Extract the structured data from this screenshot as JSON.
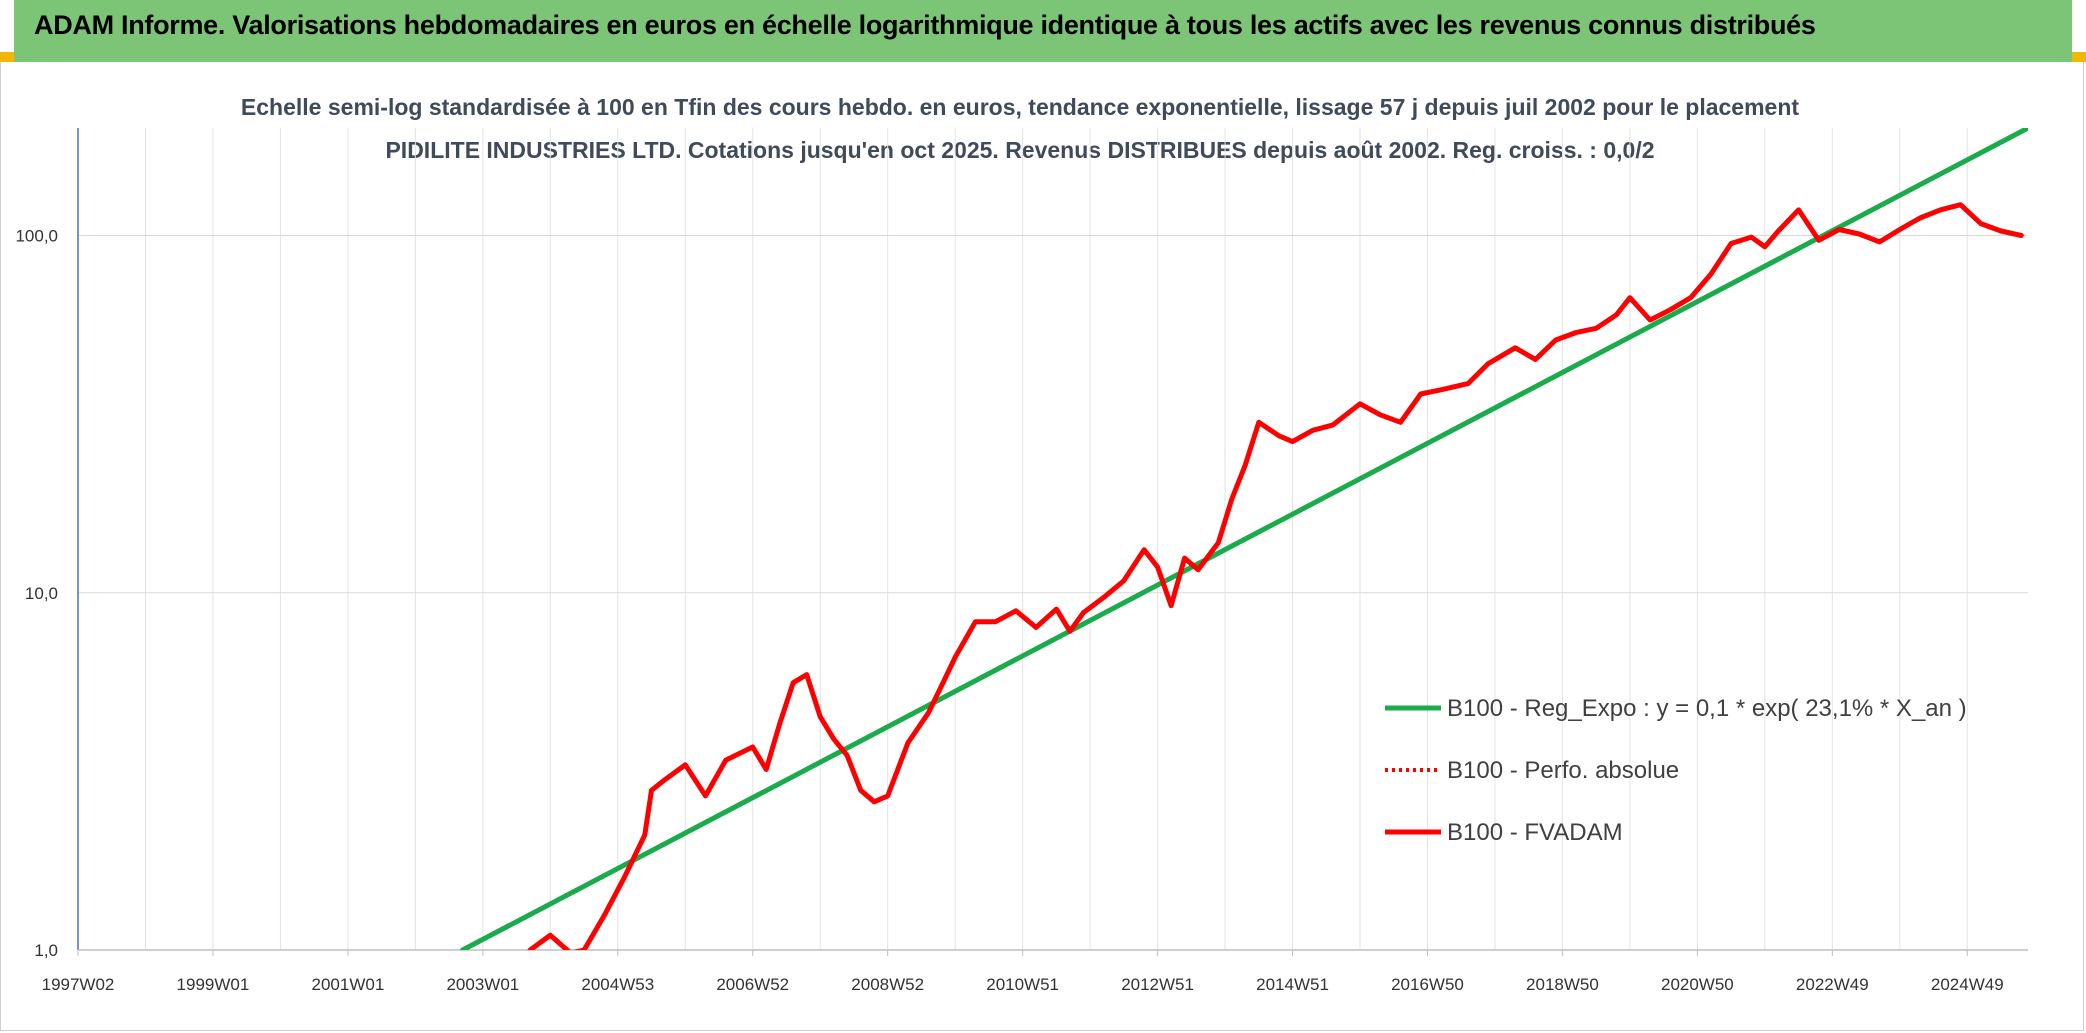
{
  "banner": {
    "title": "ADAM Informe. Valorisations hebdomadaires en euros en échelle logarithmique identique à tous les actifs avec les revenus connus distribués"
  },
  "chart_data": {
    "type": "line",
    "title": "Echelle semi-log standardisée à 100 en Tfin des cours hebdo. en euros, tendance exponentielle, lissage 57 j depuis juil 2002 pour le placement PIDILITE INDUSTRIES LTD. Cotations jusqu'en oct 2025. Revenus DISTRIBUES depuis août 2002. Reg. croiss. : 0,0/2",
    "y_scale": "log",
    "ylim": [
      1,
      200
    ],
    "xlim": [
      1997.0,
      2025.9
    ],
    "grid": true,
    "legend_position": "right",
    "x_tick_labels": [
      "1997W02",
      "1999W01",
      "2001W01",
      "2003W01",
      "2004W53",
      "2006W52",
      "2008W52",
      "2010W51",
      "2012W51",
      "2014W51",
      "2016W50",
      "2018W50",
      "2020W50",
      "2022W49",
      "2024W49"
    ],
    "x_tick_values": [
      1997.0,
      1999.0,
      2001.0,
      2003.0,
      2005.0,
      2007.0,
      2009.0,
      2011.0,
      2013.0,
      2015.0,
      2017.0,
      2019.0,
      2021.0,
      2023.0,
      2025.0
    ],
    "y_tick_labels": [
      "1,0",
      "10,0",
      "100,0"
    ],
    "y_tick_values": [
      1,
      10,
      100
    ],
    "series": [
      {
        "name": "B100 - Reg_Expo : y = 0,1 * exp( 23,1% *  X_an )",
        "color": "#1aab4c",
        "style": "solid",
        "x": [
          2002.7,
          2025.9
        ],
        "y": [
          1.0,
          200.0
        ]
      },
      {
        "name": "B100 - Perfo. absolue",
        "color": "#ff0000",
        "style": "dotted",
        "x": [],
        "y": []
      },
      {
        "name": "B100 - FVADAM",
        "color": "#ff0000",
        "style": "solid",
        "x": [
          2003.7,
          2004.0,
          2004.3,
          2004.5,
          2004.8,
          2005.1,
          2005.4,
          2005.5,
          2005.7,
          2006.0,
          2006.3,
          2006.6,
          2007.0,
          2007.2,
          2007.4,
          2007.6,
          2007.8,
          2008.0,
          2008.2,
          2008.4,
          2008.6,
          2008.8,
          2009.0,
          2009.3,
          2009.6,
          2009.8,
          2010.0,
          2010.3,
          2010.6,
          2010.9,
          2011.2,
          2011.5,
          2011.7,
          2011.9,
          2012.2,
          2012.5,
          2012.8,
          2013.0,
          2013.2,
          2013.4,
          2013.6,
          2013.9,
          2014.1,
          2014.3,
          2014.5,
          2014.8,
          2015.0,
          2015.3,
          2015.6,
          2016.0,
          2016.3,
          2016.6,
          2016.9,
          2017.2,
          2017.6,
          2017.9,
          2018.3,
          2018.6,
          2018.9,
          2019.2,
          2019.5,
          2019.8,
          2020.0,
          2020.3,
          2020.6,
          2020.9,
          2021.2,
          2021.5,
          2021.8,
          2022.0,
          2022.2,
          2022.5,
          2022.8,
          2023.1,
          2023.4,
          2023.7,
          2024.0,
          2024.3,
          2024.6,
          2024.9,
          2025.2,
          2025.5,
          2025.8
        ],
        "y": [
          1.0,
          1.1,
          0.98,
          1.0,
          1.25,
          1.6,
          2.1,
          2.8,
          3.0,
          3.3,
          2.7,
          3.4,
          3.7,
          3.2,
          4.3,
          5.6,
          5.9,
          4.5,
          3.9,
          3.5,
          2.8,
          2.6,
          2.7,
          3.8,
          4.6,
          5.5,
          6.6,
          8.3,
          8.3,
          8.9,
          8.0,
          9.0,
          7.8,
          8.8,
          9.7,
          10.8,
          13.2,
          11.8,
          9.2,
          12.5,
          11.6,
          13.8,
          18.3,
          22.8,
          30.0,
          27.5,
          26.5,
          28.5,
          29.5,
          33.8,
          31.5,
          30.0,
          36.0,
          37.0,
          38.5,
          43.8,
          48.5,
          45.0,
          51.0,
          53.5,
          55.0,
          60.0,
          67.0,
          58.0,
          62.0,
          67.0,
          78.0,
          95.0,
          99.0,
          93.0,
          103.0,
          118.0,
          97.0,
          104.0,
          101.0,
          96.0,
          104.0,
          112.0,
          118.0,
          122.0,
          108.0,
          103.0,
          100.0
        ]
      }
    ]
  }
}
